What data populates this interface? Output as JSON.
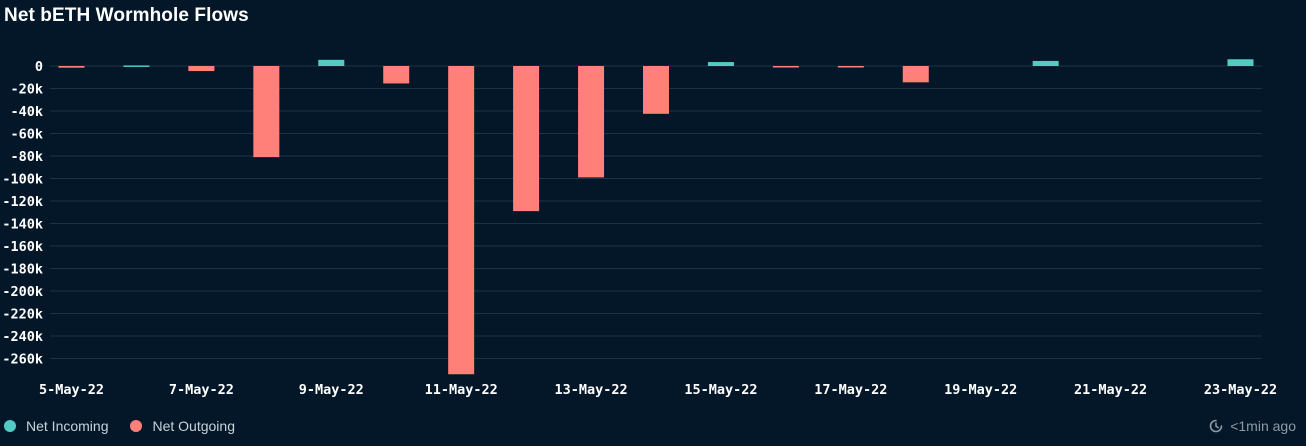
{
  "title": "Net bETH Wormhole Flows",
  "colors": {
    "background": "#041728",
    "incoming": "#52cbc3",
    "outgoing": "#ff8078",
    "grid": "#1d3344",
    "tick_text": "#ffffff"
  },
  "legend": {
    "items": [
      {
        "label": "Net Incoming",
        "color": "#52cbc3"
      },
      {
        "label": "Net Outgoing",
        "color": "#ff8078"
      }
    ]
  },
  "updated": {
    "icon": "refresh-clock-icon",
    "label": "<1min ago"
  },
  "chart_data": {
    "type": "bar",
    "title": "Net bETH Wormhole Flows",
    "xlabel": "",
    "ylabel": "",
    "ylim": [
      -270000,
      0
    ],
    "yticks": [
      0,
      -20000,
      -40000,
      -60000,
      -80000,
      -100000,
      -120000,
      -140000,
      -160000,
      -180000,
      -200000,
      -220000,
      -240000,
      -260000
    ],
    "ytick_labels": [
      "0",
      "-20k",
      "-40k",
      "-60k",
      "-80k",
      "-100k",
      "-120k",
      "-140k",
      "-160k",
      "-180k",
      "-200k",
      "-220k",
      "-240k",
      "-260k"
    ],
    "grid": true,
    "legend_position": "bottom-left",
    "categories": [
      "5-May-22",
      "6-May-22",
      "7-May-22",
      "8-May-22",
      "9-May-22",
      "10-May-22",
      "11-May-22",
      "12-May-22",
      "13-May-22",
      "14-May-22",
      "15-May-22",
      "16-May-22",
      "17-May-22",
      "18-May-22",
      "19-May-22",
      "20-May-22",
      "21-May-22",
      "22-May-22",
      "23-May-22"
    ],
    "xtick_labels": [
      "5-May-22",
      "7-May-22",
      "9-May-22",
      "11-May-22",
      "13-May-22",
      "15-May-22",
      "17-May-22",
      "19-May-22",
      "21-May-22",
      "23-May-22"
    ],
    "series": [
      {
        "name": "Net Incoming",
        "color": "#52cbc3",
        "values": [
          0,
          500,
          0,
          0,
          5500,
          0,
          0,
          0,
          0,
          0,
          3500,
          0,
          0,
          0,
          0,
          4500,
          0,
          0,
          6000
        ]
      },
      {
        "name": "Net Outgoing",
        "color": "#ff8078",
        "values": [
          -1500,
          0,
          -4500,
          -81000,
          0,
          -15500,
          -274000,
          -129000,
          -99000,
          -42500,
          0,
          -1200,
          -800,
          -14500,
          0,
          0,
          0,
          0,
          0
        ]
      }
    ]
  }
}
